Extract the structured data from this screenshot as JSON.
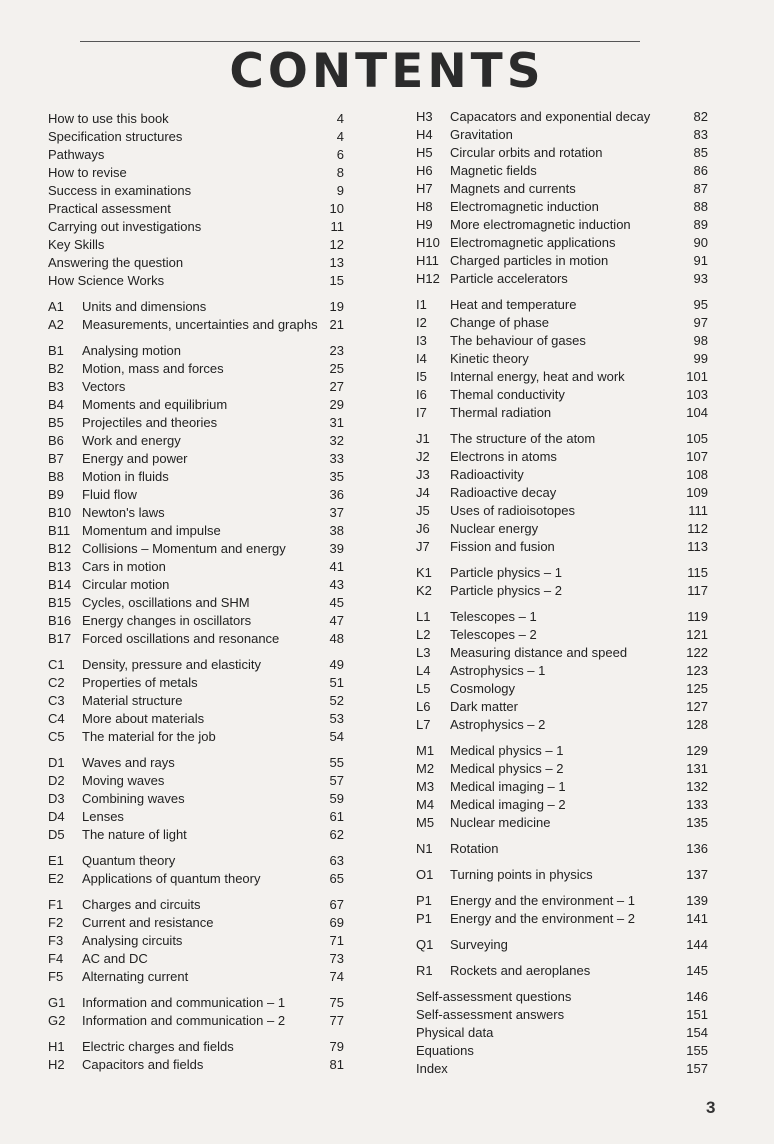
{
  "title": "CONTENTS",
  "page_number": "3",
  "left_column": [
    [
      {
        "code": "",
        "title": "How to use this book",
        "page": "4"
      },
      {
        "code": "",
        "title": "Specification structures",
        "page": "4"
      },
      {
        "code": "",
        "title": "Pathways",
        "page": "6"
      },
      {
        "code": "",
        "title": "How to revise",
        "page": "8"
      },
      {
        "code": "",
        "title": "Success in examinations",
        "page": "9"
      },
      {
        "code": "",
        "title": "Practical assessment",
        "page": "10"
      },
      {
        "code": "",
        "title": "Carrying out investigations",
        "page": "11"
      },
      {
        "code": "",
        "title": "Key Skills",
        "page": "12"
      },
      {
        "code": "",
        "title": "Answering the question",
        "page": "13"
      },
      {
        "code": "",
        "title": "How Science Works",
        "page": "15"
      }
    ],
    [
      {
        "code": "A1",
        "title": "Units and dimensions",
        "page": "19"
      },
      {
        "code": "A2",
        "title": "Measurements, uncertainties and graphs",
        "page": "21"
      }
    ],
    [
      {
        "code": "B1",
        "title": "Analysing motion",
        "page": "23"
      },
      {
        "code": "B2",
        "title": "Motion, mass and forces",
        "page": "25"
      },
      {
        "code": "B3",
        "title": "Vectors",
        "page": "27"
      },
      {
        "code": "B4",
        "title": "Moments and equilibrium",
        "page": "29"
      },
      {
        "code": "B5",
        "title": "Projectiles and theories",
        "page": "31"
      },
      {
        "code": "B6",
        "title": "Work and energy",
        "page": "32"
      },
      {
        "code": "B7",
        "title": "Energy and power",
        "page": "33"
      },
      {
        "code": "B8",
        "title": "Motion in fluids",
        "page": "35"
      },
      {
        "code": "B9",
        "title": "Fluid flow",
        "page": "36"
      },
      {
        "code": "B10",
        "title": "Newton's laws",
        "page": "37"
      },
      {
        "code": "B11",
        "title": "Momentum and impulse",
        "page": "38"
      },
      {
        "code": "B12",
        "title": "Collisions – Momentum and energy",
        "page": "39"
      },
      {
        "code": "B13",
        "title": "Cars in motion",
        "page": "41"
      },
      {
        "code": "B14",
        "title": "Circular motion",
        "page": "43"
      },
      {
        "code": "B15",
        "title": "Cycles, oscillations and SHM",
        "page": "45"
      },
      {
        "code": "B16",
        "title": "Energy changes in oscillators",
        "page": "47"
      },
      {
        "code": "B17",
        "title": "Forced oscillations and resonance",
        "page": "48"
      }
    ],
    [
      {
        "code": "C1",
        "title": "Density, pressure and elasticity",
        "page": "49"
      },
      {
        "code": "C2",
        "title": "Properties of metals",
        "page": "51"
      },
      {
        "code": "C3",
        "title": "Material structure",
        "page": "52"
      },
      {
        "code": "C4",
        "title": "More about materials",
        "page": "53"
      },
      {
        "code": "C5",
        "title": "The material for the job",
        "page": "54"
      }
    ],
    [
      {
        "code": "D1",
        "title": "Waves and rays",
        "page": "55"
      },
      {
        "code": "D2",
        "title": "Moving waves",
        "page": "57"
      },
      {
        "code": "D3",
        "title": "Combining waves",
        "page": "59"
      },
      {
        "code": "D4",
        "title": "Lenses",
        "page": "61"
      },
      {
        "code": "D5",
        "title": "The nature of light",
        "page": "62"
      }
    ],
    [
      {
        "code": "E1",
        "title": "Quantum theory",
        "page": "63"
      },
      {
        "code": "E2",
        "title": "Applications of quantum theory",
        "page": "65"
      }
    ],
    [
      {
        "code": "F1",
        "title": "Charges and circuits",
        "page": "67"
      },
      {
        "code": "F2",
        "title": "Current and resistance",
        "page": "69"
      },
      {
        "code": "F3",
        "title": "Analysing circuits",
        "page": "71"
      },
      {
        "code": "F4",
        "title": "AC and DC",
        "page": "73"
      },
      {
        "code": "F5",
        "title": "Alternating current",
        "page": "74"
      }
    ],
    [
      {
        "code": "G1",
        "title": "Information and communication – 1",
        "page": "75"
      },
      {
        "code": "G2",
        "title": "Information and communication – 2",
        "page": "77"
      }
    ],
    [
      {
        "code": "H1",
        "title": "Electric charges and fields",
        "page": "79"
      },
      {
        "code": "H2",
        "title": "Capacitors and fields",
        "page": "81"
      }
    ]
  ],
  "right_column": [
    [
      {
        "code": "H3",
        "title": "Capacators and exponential decay",
        "page": "82"
      },
      {
        "code": "H4",
        "title": "Gravitation",
        "page": "83"
      },
      {
        "code": "H5",
        "title": "Circular orbits and rotation",
        "page": "85"
      },
      {
        "code": "H6",
        "title": "Magnetic fields",
        "page": "86"
      },
      {
        "code": "H7",
        "title": "Magnets and currents",
        "page": "87"
      },
      {
        "code": "H8",
        "title": "Electromagnetic induction",
        "page": "88"
      },
      {
        "code": "H9",
        "title": "More electromagnetic induction",
        "page": "89"
      },
      {
        "code": "H10",
        "title": "Electromagnetic applications",
        "page": "90"
      },
      {
        "code": "H11",
        "title": "Charged particles in motion",
        "page": "91"
      },
      {
        "code": "H12",
        "title": "Particle accelerators",
        "page": "93"
      }
    ],
    [
      {
        "code": "I1",
        "title": "Heat and temperature",
        "page": "95"
      },
      {
        "code": "I2",
        "title": "Change of phase",
        "page": "97"
      },
      {
        "code": "I3",
        "title": "The behaviour of gases",
        "page": "98"
      },
      {
        "code": "I4",
        "title": "Kinetic theory",
        "page": "99"
      },
      {
        "code": "I5",
        "title": "Internal energy, heat and work",
        "page": "101"
      },
      {
        "code": "I6",
        "title": "Themal conductivity",
        "page": "103"
      },
      {
        "code": "I7",
        "title": "Thermal radiation",
        "page": "104"
      }
    ],
    [
      {
        "code": "J1",
        "title": "The structure of the atom",
        "page": "105"
      },
      {
        "code": "J2",
        "title": "Electrons in atoms",
        "page": "107"
      },
      {
        "code": "J3",
        "title": "Radioactivity",
        "page": "108"
      },
      {
        "code": "J4",
        "title": "Radioactive decay",
        "page": "109"
      },
      {
        "code": "J5",
        "title": "Uses of radioisotopes",
        "page": "111"
      },
      {
        "code": "J6",
        "title": "Nuclear energy",
        "page": "112"
      },
      {
        "code": "J7",
        "title": "Fission and fusion",
        "page": "113"
      }
    ],
    [
      {
        "code": "K1",
        "title": "Particle physics – 1",
        "page": "115"
      },
      {
        "code": "K2",
        "title": "Particle physics – 2",
        "page": "117"
      }
    ],
    [
      {
        "code": "L1",
        "title": "Telescopes – 1",
        "page": "119"
      },
      {
        "code": "L2",
        "title": "Telescopes – 2",
        "page": "121"
      },
      {
        "code": "L3",
        "title": "Measuring distance and speed",
        "page": "122"
      },
      {
        "code": "L4",
        "title": "Astrophysics – 1",
        "page": "123"
      },
      {
        "code": "L5",
        "title": "Cosmology",
        "page": "125"
      },
      {
        "code": "L6",
        "title": "Dark matter",
        "page": "127"
      },
      {
        "code": "L7",
        "title": "Astrophysics – 2",
        "page": "128"
      }
    ],
    [
      {
        "code": "M1",
        "title": "Medical physics – 1",
        "page": "129"
      },
      {
        "code": "M2",
        "title": "Medical physics – 2",
        "page": "131"
      },
      {
        "code": "M3",
        "title": "Medical imaging – 1",
        "page": "132"
      },
      {
        "code": "M4",
        "title": "Medical imaging – 2",
        "page": "133"
      },
      {
        "code": "M5",
        "title": "Nuclear medicine",
        "page": "135"
      }
    ],
    [
      {
        "code": "N1",
        "title": "Rotation",
        "page": "136"
      }
    ],
    [
      {
        "code": "O1",
        "title": "Turning points in physics",
        "page": "137"
      }
    ],
    [
      {
        "code": "P1",
        "title": "Energy and the environment – 1",
        "page": "139"
      },
      {
        "code": "P1",
        "title": "Energy and the environment – 2",
        "page": "141"
      }
    ],
    [
      {
        "code": "Q1",
        "title": "Surveying",
        "page": "144"
      }
    ],
    [
      {
        "code": "R1",
        "title": "Rockets and aeroplanes",
        "page": "145"
      }
    ],
    [
      {
        "code": "",
        "title": "Self-assessment questions",
        "page": "146"
      },
      {
        "code": "",
        "title": "Self-assessment answers",
        "page": "151"
      },
      {
        "code": "",
        "title": "Physical data",
        "page": "154"
      },
      {
        "code": "",
        "title": "Equations",
        "page": "155"
      },
      {
        "code": "",
        "title": "Index",
        "page": "157"
      }
    ]
  ]
}
